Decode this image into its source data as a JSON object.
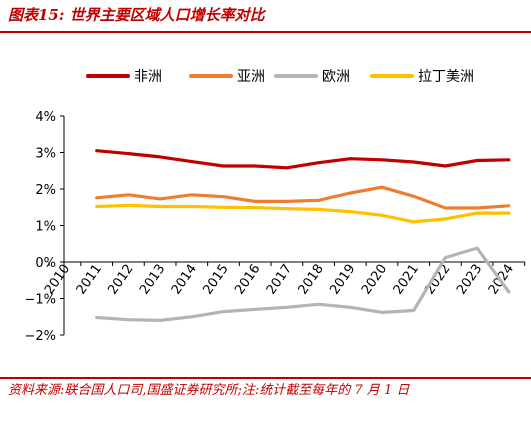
{
  "figure": {
    "title": "图表15:  世界主要区域人口增长率对比",
    "source": "资料来源:联合国人口司,国盛证券研究所;注:统计截至每年的 7 月 1 日"
  },
  "colors": {
    "accent": "#c00000",
    "africa": "#c00000",
    "asia": "#ed7d31",
    "europe": "#b4b4b4",
    "latin_america": "#ffc000"
  },
  "chart_data": {
    "type": "line",
    "title": "",
    "xlabel": "",
    "ylabel": "",
    "x": [
      "2010",
      "2011",
      "2012",
      "2013",
      "2014",
      "2015",
      "2016",
      "2017",
      "2018",
      "2019",
      "2020",
      "2021",
      "2022",
      "2023",
      "2024"
    ],
    "y_ticks": [
      "4%",
      "3%",
      "2%",
      "1%",
      "0%",
      "−1%",
      "−2%"
    ],
    "ylim": [
      -2,
      4
    ],
    "y_unit": "%",
    "grid": false,
    "legend_position": "top",
    "series": [
      {
        "name": "非洲",
        "color_key": "africa",
        "values": [
          null,
          3.05,
          2.97,
          2.88,
          2.75,
          2.63,
          2.63,
          2.58,
          2.72,
          2.83,
          2.8,
          2.74,
          2.63,
          2.78,
          2.8
        ]
      },
      {
        "name": "亚洲",
        "color_key": "asia",
        "values": [
          null,
          1.76,
          1.84,
          1.73,
          1.84,
          1.79,
          1.66,
          1.66,
          1.69,
          1.89,
          2.05,
          1.8,
          1.48,
          1.48,
          1.54
        ]
      },
      {
        "name": "欧洲",
        "color_key": "europe",
        "values": [
          null,
          -1.52,
          -1.58,
          -1.6,
          -1.5,
          -1.36,
          -1.3,
          -1.24,
          -1.16,
          -1.24,
          -1.38,
          -1.33,
          0.12,
          0.38,
          -0.82
        ]
      },
      {
        "name": "拉丁美洲",
        "color_key": "latin_america",
        "values": [
          null,
          1.52,
          1.55,
          1.52,
          1.52,
          1.5,
          1.49,
          1.46,
          1.44,
          1.38,
          1.28,
          1.1,
          1.18,
          1.34,
          1.34
        ]
      }
    ]
  }
}
